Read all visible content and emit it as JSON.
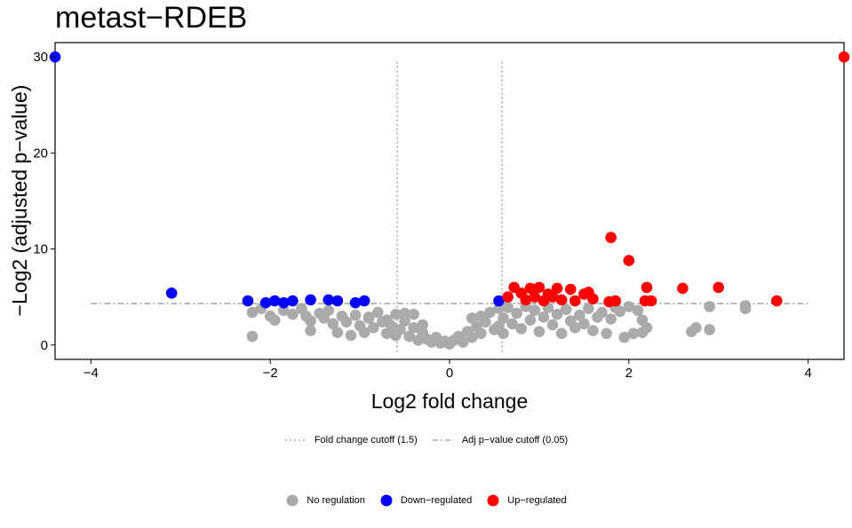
{
  "chart_data": {
    "type": "scatter",
    "title": "metast−RDEB",
    "xlabel": "Log2 fold change",
    "ylabel": "−Log2 (adjusted p−value)",
    "xlim": [
      -4.4,
      4.4
    ],
    "ylim": [
      -1.5,
      31.5
    ],
    "xticks": [
      -4,
      -2,
      0,
      2,
      4
    ],
    "xtick_labels": [
      "−4",
      "−2",
      "0",
      "2",
      "4"
    ],
    "yticks": [
      0,
      10,
      20,
      30
    ],
    "ytick_labels": [
      "0",
      "10",
      "20",
      "30"
    ],
    "grid": false,
    "fold_change_cutoff": {
      "label": "Fold change cutoff (1.5)",
      "x": [
        -0.585,
        0.585
      ],
      "color": "#aaaaaa"
    },
    "pvalue_cutoff": {
      "label": "Adj p−value cutoff (0.05)",
      "y": 4.32,
      "color": "#aaaaaa"
    },
    "legend_position": "bottom",
    "series": [
      {
        "name": "No regulation",
        "color": "#aaaaaa",
        "points": [
          [
            -2.2,
            3.4
          ],
          [
            -2.2,
            0.9
          ],
          [
            -2.1,
            3.8
          ],
          [
            -2.0,
            3.0
          ],
          [
            -1.95,
            2.6
          ],
          [
            -1.85,
            3.6
          ],
          [
            -1.75,
            3.2
          ],
          [
            -1.65,
            3.8
          ],
          [
            -1.6,
            3.0
          ],
          [
            -1.55,
            2.5
          ],
          [
            -1.55,
            1.5
          ],
          [
            -1.45,
            3.3
          ],
          [
            -1.4,
            2.8
          ],
          [
            -1.35,
            3.6
          ],
          [
            -1.3,
            2.2
          ],
          [
            -1.25,
            1.3
          ],
          [
            -1.2,
            3.0
          ],
          [
            -1.15,
            2.4
          ],
          [
            -1.1,
            1.0
          ],
          [
            -1.05,
            3.1
          ],
          [
            -1.0,
            2.0
          ],
          [
            -0.95,
            1.3
          ],
          [
            -0.9,
            2.8
          ],
          [
            -0.85,
            1.8
          ],
          [
            -0.8,
            3.4
          ],
          [
            -0.75,
            2.4
          ],
          [
            -0.7,
            1.2
          ],
          [
            -0.65,
            2.0
          ],
          [
            -0.6,
            3.2
          ],
          [
            -0.55,
            1.6
          ],
          [
            -0.5,
            2.5
          ],
          [
            -0.45,
            0.9
          ],
          [
            -0.4,
            1.8
          ],
          [
            -0.35,
            0.5
          ],
          [
            -0.3,
            1.3
          ],
          [
            -0.25,
            0.6
          ],
          [
            -0.2,
            0.3
          ],
          [
            -0.15,
            0.8
          ],
          [
            -0.1,
            0.2
          ],
          [
            -0.05,
            0.4
          ],
          [
            -0.4,
            3.2
          ],
          [
            -0.6,
            1.0
          ],
          [
            0.0,
            0.1
          ],
          [
            0.05,
            0.5
          ],
          [
            0.1,
            0.9
          ],
          [
            0.15,
            0.3
          ],
          [
            0.2,
            1.4
          ],
          [
            0.25,
            0.8
          ],
          [
            0.25,
            2.8
          ],
          [
            0.3,
            1.9
          ],
          [
            0.35,
            1.2
          ],
          [
            0.4,
            2.4
          ],
          [
            0.45,
            3.4
          ],
          [
            0.5,
            1.6
          ],
          [
            0.55,
            3.8
          ],
          [
            0.6,
            2.8
          ],
          [
            0.6,
            1.2
          ],
          [
            0.65,
            3.9
          ],
          [
            0.7,
            2.2
          ],
          [
            0.75,
            3.3
          ],
          [
            0.8,
            1.7
          ],
          [
            0.85,
            4.0
          ],
          [
            0.9,
            2.6
          ],
          [
            0.95,
            3.6
          ],
          [
            1.0,
            1.4
          ],
          [
            1.05,
            2.9
          ],
          [
            1.1,
            3.9
          ],
          [
            1.15,
            2.1
          ],
          [
            1.2,
            3.2
          ],
          [
            1.25,
            1.2
          ],
          [
            1.3,
            3.7
          ],
          [
            1.35,
            2.5
          ],
          [
            1.4,
            1.8
          ],
          [
            1.45,
            3.1
          ],
          [
            1.5,
            2.2
          ],
          [
            1.55,
            3.8
          ],
          [
            1.6,
            1.5
          ],
          [
            1.65,
            2.9
          ],
          [
            1.7,
            3.4
          ],
          [
            1.75,
            1.2
          ],
          [
            1.8,
            2.7
          ],
          [
            1.85,
            3.9
          ],
          [
            1.9,
            3.5
          ],
          [
            1.95,
            0.8
          ],
          [
            2.0,
            4.0
          ],
          [
            2.05,
            1.2
          ],
          [
            2.1,
            3.6
          ],
          [
            2.15,
            2.6
          ],
          [
            2.2,
            1.8
          ],
          [
            2.15,
            1.3
          ],
          [
            2.7,
            1.4
          ],
          [
            2.75,
            1.8
          ],
          [
            2.9,
            1.6
          ],
          [
            2.9,
            4.0
          ],
          [
            3.3,
            3.8
          ],
          [
            3.3,
            4.1
          ],
          [
            -0.9,
            2.9
          ],
          [
            -0.7,
            2.6
          ],
          [
            -0.5,
            3.3
          ],
          [
            -0.3,
            2.1
          ],
          [
            0.35,
            3.0
          ],
          [
            0.55,
            2.0
          ]
        ]
      },
      {
        "name": "Down−regulated",
        "color": "#0000ff",
        "points": [
          [
            -4.4,
            30.0
          ],
          [
            -3.1,
            5.4
          ],
          [
            -2.25,
            4.6
          ],
          [
            -2.05,
            4.4
          ],
          [
            -1.95,
            4.6
          ],
          [
            -1.85,
            4.4
          ],
          [
            -1.75,
            4.6
          ],
          [
            -1.55,
            4.7
          ],
          [
            -1.35,
            4.7
          ],
          [
            -1.25,
            4.6
          ],
          [
            -1.05,
            4.4
          ],
          [
            -0.95,
            4.6
          ],
          [
            0.55,
            4.6
          ]
        ]
      },
      {
        "name": "Up−regulated",
        "color": "#ff0000",
        "points": [
          [
            4.4,
            30.0
          ],
          [
            1.8,
            11.2
          ],
          [
            2.0,
            8.8
          ],
          [
            2.2,
            6.0
          ],
          [
            2.6,
            5.9
          ],
          [
            3.0,
            6.0
          ],
          [
            3.65,
            4.6
          ],
          [
            1.55,
            5.5
          ],
          [
            1.5,
            5.3
          ],
          [
            1.35,
            5.8
          ],
          [
            1.2,
            5.9
          ],
          [
            1.1,
            5.3
          ],
          [
            1.0,
            6.0
          ],
          [
            0.9,
            5.9
          ],
          [
            0.8,
            5.4
          ],
          [
            0.72,
            6.0
          ],
          [
            0.65,
            5.0
          ],
          [
            0.95,
            5.0
          ],
          [
            1.05,
            4.6
          ],
          [
            1.25,
            4.7
          ],
          [
            1.4,
            4.6
          ],
          [
            1.6,
            4.8
          ],
          [
            1.78,
            4.5
          ],
          [
            1.85,
            4.6
          ],
          [
            2.18,
            4.6
          ],
          [
            2.25,
            4.6
          ],
          [
            0.85,
            4.7
          ],
          [
            1.15,
            5.0
          ]
        ]
      }
    ]
  }
}
